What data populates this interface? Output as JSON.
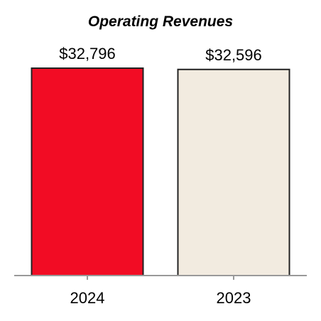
{
  "chart_data": {
    "type": "bar",
    "title": "Operating Revenues",
    "categories": [
      "2024",
      "2023"
    ],
    "values": [
      32796,
      32596
    ],
    "value_labels": [
      "$32,796",
      "$32,596"
    ],
    "colors": [
      "#f20c24",
      "#f2ebe0"
    ],
    "axis_color": "#999999",
    "bar_edge_color": "#222222",
    "grid": false,
    "legend": "none",
    "xlabel": "",
    "ylabel": ""
  }
}
